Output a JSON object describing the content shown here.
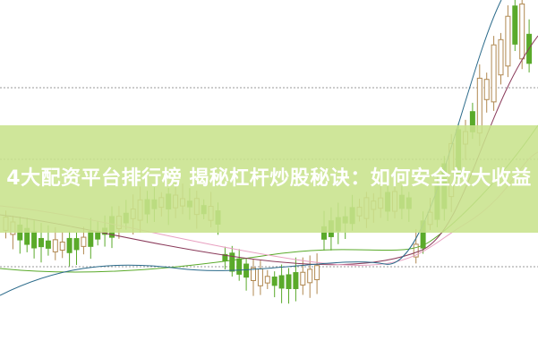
{
  "article": {
    "title": "4大配资平台排行榜 揭秘杠杆炒股秘诀：如何安全放大收益"
  },
  "colors": {
    "banner": "#c8e28c",
    "title_text": "#ffffff",
    "up_candle": "#b08850",
    "down_candle": "#5aaa2a",
    "gridline": "#999999"
  },
  "background_image": "candlestick-chart"
}
